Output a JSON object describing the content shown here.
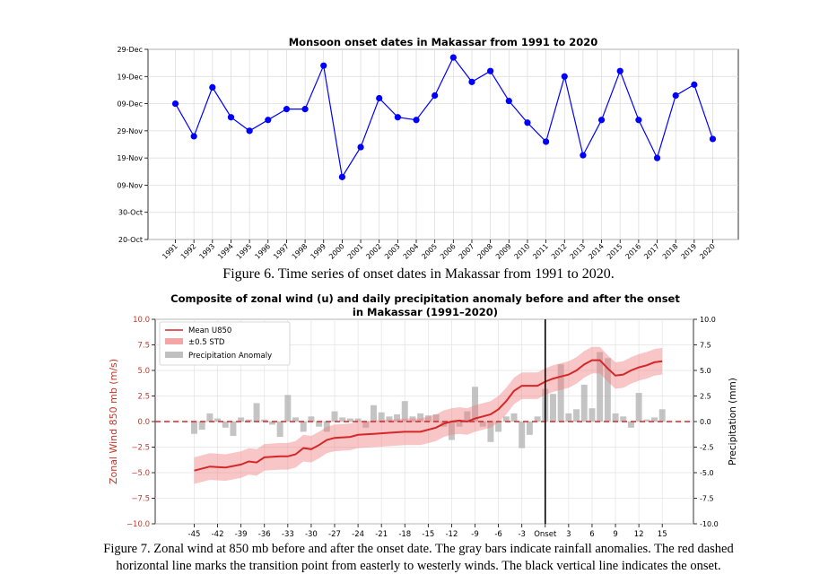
{
  "chart_data": [
    {
      "type": "line",
      "title": "Monsoon onset dates in Makassar from 1991 to 2020",
      "xlabel": "",
      "ylabel": "",
      "ylim_days_since_20_oct": [
        0,
        70
      ],
      "y_tick_labels": [
        "20-Oct",
        "30-Oct",
        "09-Nov",
        "19-Nov",
        "29-Nov",
        "09-Dec",
        "19-Dec",
        "29-Dec"
      ],
      "y_tick_values": [
        0,
        10,
        20,
        30,
        40,
        50,
        60,
        70
      ],
      "series_color": "#0000ff",
      "x": [
        "1991",
        "1992",
        "1993",
        "1994",
        "1995",
        "1996",
        "1997",
        "1998",
        "1999",
        "2000",
        "2001",
        "2002",
        "2003",
        "2004",
        "2005",
        "2006",
        "2007",
        "2008",
        "2009",
        "2010",
        "2011",
        "2012",
        "2013",
        "2014",
        "2015",
        "2016",
        "2017",
        "2018",
        "2019",
        "2020"
      ],
      "values": [
        50,
        38,
        56,
        45,
        40,
        44,
        48,
        48,
        64,
        23,
        34,
        52,
        45,
        44,
        53,
        67,
        58,
        62,
        51,
        43,
        36,
        60,
        31,
        44,
        62,
        44,
        30,
        53,
        57,
        37
      ],
      "caption": "Figure 6. Time series of onset dates in Makassar from 1991 to 2020."
    },
    {
      "type": "line",
      "title": "Composite of zonal wind (u) and daily precipitation anomaly before and after the onset",
      "title_line2": "in Makassar (1991–2020)",
      "ylabel": "Zonal Wind 850 mb (m/s)",
      "ylabel_right": "Precipitation (mm)",
      "xlim": [
        -50,
        19
      ],
      "ylim": [
        -10,
        10
      ],
      "ylim_right": [
        -10,
        10
      ],
      "x_ticks": [
        -45,
        -42,
        -39,
        -36,
        -33,
        -30,
        -27,
        -24,
        -21,
        -18,
        -15,
        -12,
        -9,
        -6,
        -3,
        0,
        3,
        6,
        9,
        12,
        15
      ],
      "x_tick_labels": [
        "-45",
        "-42",
        "-39",
        "-36",
        "-33",
        "-30",
        "-27",
        "-24",
        "-21",
        "-18",
        "-15",
        "-12",
        "-9",
        "-6",
        "-3",
        "Onset",
        "3",
        "6",
        "9",
        "12",
        "15"
      ],
      "y_ticks": [
        -10,
        -7.5,
        -5,
        -2.5,
        0,
        2.5,
        5,
        7.5,
        10
      ],
      "y_tick_labels": [
        "−10.0",
        "−7.5",
        "−5.0",
        "−2.5",
        "0.0",
        "2.5",
        "5.0",
        "7.5",
        "10.0"
      ],
      "y_tick_labels_right": [
        "-10.0",
        "-7.5",
        "-5.0",
        "-2.5",
        "0.0",
        "2.5",
        "5.0",
        "7.5",
        "10.0"
      ],
      "legend": [
        "Mean U850",
        "±0.5 STD",
        "Precipitation Anomaly"
      ],
      "legend_position": "top-left",
      "colors": {
        "mean": "#d62728",
        "std": "#f08080",
        "bars": "#b0b0b0",
        "zero_line": "#d62728",
        "onset_line": "#000000"
      },
      "mean_u850": {
        "x": [
          -45,
          -43,
          -41,
          -39,
          -38,
          -37,
          -36,
          -34,
          -33,
          -32,
          -31,
          -30,
          -29,
          -28,
          -27,
          -25,
          -24,
          -22,
          -20,
          -18,
          -16,
          -14,
          -13,
          -12,
          -11,
          -10,
          -9,
          -8,
          -7,
          -6,
          -5,
          -4,
          -3,
          -2,
          -1,
          0,
          1,
          2,
          3,
          4,
          5,
          6,
          7,
          8,
          9,
          10,
          11,
          12,
          13,
          14,
          15
        ],
        "values": [
          -4.8,
          -4.4,
          -4.5,
          -4.2,
          -3.9,
          -4.0,
          -3.5,
          -3.4,
          -3.4,
          -3.2,
          -2.6,
          -2.7,
          -2.3,
          -1.8,
          -1.6,
          -1.5,
          -1.3,
          -1.2,
          -1.1,
          -1.0,
          -1.0,
          -0.6,
          -0.2,
          0.0,
          0.1,
          0.0,
          0.3,
          0.5,
          0.7,
          1.2,
          2.0,
          3.0,
          3.5,
          3.5,
          3.5,
          3.9,
          4.2,
          4.4,
          4.6,
          5.0,
          5.6,
          6.0,
          6.0,
          5.2,
          4.5,
          4.6,
          5.0,
          5.3,
          5.5,
          5.8,
          5.9
        ]
      },
      "std_half_width": 1.3,
      "precip_anomaly": {
        "x": [
          -45,
          -44,
          -43,
          -42,
          -41,
          -40,
          -39,
          -38,
          -37,
          -36,
          -35,
          -34,
          -33,
          -32,
          -31,
          -30,
          -29,
          -28,
          -27,
          -26,
          -25,
          -24,
          -23,
          -22,
          -21,
          -20,
          -19,
          -18,
          -17,
          -16,
          -15,
          -14,
          -13,
          -12,
          -11,
          -10,
          -9,
          -8,
          -7,
          -6,
          -5,
          -4,
          -3,
          -2,
          -1,
          0,
          1,
          2,
          3,
          4,
          5,
          6,
          7,
          8,
          9,
          10,
          11,
          12,
          13,
          14,
          15
        ],
        "values": [
          -1.2,
          -0.8,
          0.8,
          0.3,
          -0.6,
          -1.4,
          0.4,
          0.2,
          1.8,
          0.2,
          -0.3,
          -1.5,
          2.6,
          0.4,
          -1.0,
          0.5,
          -0.5,
          -1.0,
          1.0,
          0.4,
          0.3,
          0.3,
          -0.6,
          1.6,
          0.9,
          0.5,
          0.7,
          2.0,
          0.5,
          0.8,
          0.6,
          0.7,
          -0.5,
          -1.8,
          -0.5,
          1.0,
          3.4,
          -0.5,
          -2.0,
          -1.0,
          0.5,
          0.8,
          -2.6,
          -1.3,
          0.5,
          3.2,
          2.7,
          5.6,
          0.8,
          1.2,
          3.6,
          1.3,
          6.8,
          6.2,
          0.8,
          0.5,
          -0.6,
          2.8,
          0.2,
          0.4,
          1.2
        ]
      },
      "caption_line1": "Figure 7. Zonal wind at 850 mb before and after the onset date. The gray bars indicate rainfall anomalies. The red dashed",
      "caption_line2": "horizontal line marks the transition point from easterly to westerly winds. The black vertical line indicates the onset."
    }
  ]
}
